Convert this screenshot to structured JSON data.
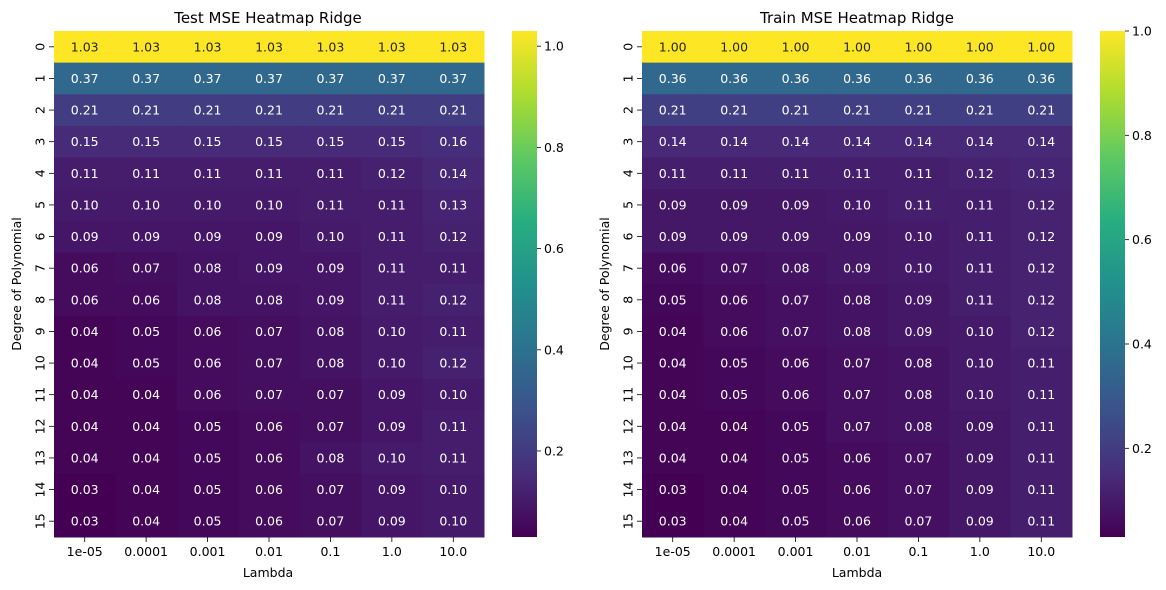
{
  "chart_data": [
    {
      "type": "heatmap",
      "title": "Test MSE Heatmap Ridge",
      "xlabel": "Lambda",
      "ylabel": "Degree of Polynomial",
      "x_categories": [
        "1e-05",
        "0.0001",
        "0.001",
        "0.01",
        "0.1",
        "1.0",
        "10.0"
      ],
      "y_categories": [
        "0",
        "1",
        "2",
        "3",
        "4",
        "5",
        "6",
        "7",
        "8",
        "9",
        "10",
        "11",
        "12",
        "13",
        "14",
        "15"
      ],
      "values": [
        [
          1.03,
          1.03,
          1.03,
          1.03,
          1.03,
          1.03,
          1.03
        ],
        [
          0.37,
          0.37,
          0.37,
          0.37,
          0.37,
          0.37,
          0.37
        ],
        [
          0.21,
          0.21,
          0.21,
          0.21,
          0.21,
          0.21,
          0.21
        ],
        [
          0.15,
          0.15,
          0.15,
          0.15,
          0.15,
          0.15,
          0.16
        ],
        [
          0.11,
          0.11,
          0.11,
          0.11,
          0.11,
          0.12,
          0.14
        ],
        [
          0.1,
          0.1,
          0.1,
          0.1,
          0.11,
          0.11,
          0.13
        ],
        [
          0.09,
          0.09,
          0.09,
          0.09,
          0.1,
          0.11,
          0.12
        ],
        [
          0.06,
          0.07,
          0.08,
          0.09,
          0.09,
          0.11,
          0.11
        ],
        [
          0.06,
          0.06,
          0.08,
          0.08,
          0.09,
          0.11,
          0.12
        ],
        [
          0.04,
          0.05,
          0.06,
          0.07,
          0.08,
          0.1,
          0.11
        ],
        [
          0.04,
          0.05,
          0.06,
          0.07,
          0.08,
          0.1,
          0.12
        ],
        [
          0.04,
          0.04,
          0.06,
          0.07,
          0.07,
          0.09,
          0.1
        ],
        [
          0.04,
          0.04,
          0.05,
          0.06,
          0.07,
          0.09,
          0.11
        ],
        [
          0.04,
          0.04,
          0.05,
          0.06,
          0.08,
          0.1,
          0.11
        ],
        [
          0.03,
          0.04,
          0.05,
          0.06,
          0.07,
          0.09,
          0.1
        ],
        [
          0.03,
          0.04,
          0.05,
          0.06,
          0.07,
          0.09,
          0.1
        ]
      ],
      "value_format": "0.00",
      "colormap": "viridis",
      "colorbar_range": [
        0.03,
        1.03
      ],
      "colorbar_ticks": [
        0.2,
        0.4,
        0.6,
        0.8,
        1.0
      ]
    },
    {
      "type": "heatmap",
      "title": "Train MSE Heatmap Ridge",
      "xlabel": "Lambda",
      "ylabel": "Degree of Polynomial",
      "x_categories": [
        "1e-05",
        "0.0001",
        "0.001",
        "0.01",
        "0.1",
        "1.0",
        "10.0"
      ],
      "y_categories": [
        "0",
        "1",
        "2",
        "3",
        "4",
        "5",
        "6",
        "7",
        "8",
        "9",
        "10",
        "11",
        "12",
        "13",
        "14",
        "15"
      ],
      "values": [
        [
          1.0,
          1.0,
          1.0,
          1.0,
          1.0,
          1.0,
          1.0
        ],
        [
          0.36,
          0.36,
          0.36,
          0.36,
          0.36,
          0.36,
          0.36
        ],
        [
          0.21,
          0.21,
          0.21,
          0.21,
          0.21,
          0.21,
          0.21
        ],
        [
          0.14,
          0.14,
          0.14,
          0.14,
          0.14,
          0.14,
          0.14
        ],
        [
          0.11,
          0.11,
          0.11,
          0.11,
          0.11,
          0.12,
          0.13
        ],
        [
          0.09,
          0.09,
          0.09,
          0.1,
          0.11,
          0.11,
          0.12
        ],
        [
          0.09,
          0.09,
          0.09,
          0.09,
          0.1,
          0.11,
          0.12
        ],
        [
          0.06,
          0.07,
          0.08,
          0.09,
          0.1,
          0.11,
          0.12
        ],
        [
          0.05,
          0.06,
          0.07,
          0.08,
          0.09,
          0.11,
          0.12
        ],
        [
          0.04,
          0.06,
          0.07,
          0.08,
          0.09,
          0.1,
          0.12
        ],
        [
          0.04,
          0.05,
          0.06,
          0.07,
          0.08,
          0.1,
          0.11
        ],
        [
          0.04,
          0.05,
          0.06,
          0.07,
          0.08,
          0.1,
          0.11
        ],
        [
          0.04,
          0.04,
          0.05,
          0.07,
          0.08,
          0.09,
          0.11
        ],
        [
          0.04,
          0.04,
          0.05,
          0.06,
          0.07,
          0.09,
          0.11
        ],
        [
          0.03,
          0.04,
          0.05,
          0.06,
          0.07,
          0.09,
          0.11
        ],
        [
          0.03,
          0.04,
          0.05,
          0.06,
          0.07,
          0.09,
          0.11
        ]
      ],
      "value_format": "0.00",
      "colormap": "viridis",
      "colorbar_range": [
        0.03,
        1.0
      ],
      "colorbar_ticks": [
        0.2,
        0.4,
        0.6,
        0.8,
        1.0
      ]
    }
  ]
}
